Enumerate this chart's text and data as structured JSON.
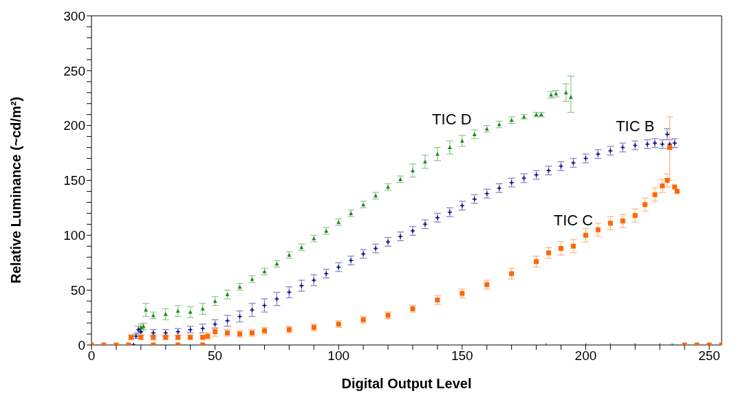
{
  "chart_data": {
    "type": "scatter",
    "xlabel": "Digital Output Level",
    "ylabel": "Relative Luminance (~cd/m²)",
    "xlim": [
      0,
      255
    ],
    "ylim": [
      0,
      300
    ],
    "xticks": [
      0,
      {
        "value": 10,
        "label": null
      },
      {
        "value": 20,
        "label": null
      },
      {
        "value": 30,
        "label": null
      },
      {
        "value": 40,
        "label": null
      },
      50,
      {
        "value": 60,
        "label": null
      },
      {
        "value": 70,
        "label": null
      },
      {
        "value": 80,
        "label": null
      },
      {
        "value": 90,
        "label": null
      },
      100,
      {
        "value": 110,
        "label": null
      },
      {
        "value": 120,
        "label": null
      },
      {
        "value": 130,
        "label": null
      },
      {
        "value": 140,
        "label": null
      },
      150,
      {
        "value": 160,
        "label": null
      },
      {
        "value": 170,
        "label": null
      },
      {
        "value": 180,
        "label": null
      },
      {
        "value": 190,
        "label": null
      },
      200,
      {
        "value": 210,
        "label": null
      },
      {
        "value": 220,
        "label": null
      },
      {
        "value": 230,
        "label": null
      },
      {
        "value": 240,
        "label": null
      },
      250
    ],
    "yticks": [
      0,
      {
        "value": 10,
        "label": null
      },
      {
        "value": 20,
        "label": null
      },
      {
        "value": 30,
        "label": null
      },
      {
        "value": 40,
        "label": null
      },
      50,
      {
        "value": 60,
        "label": null
      },
      {
        "value": 70,
        "label": null
      },
      {
        "value": 80,
        "label": null
      },
      {
        "value": 90,
        "label": null
      },
      100,
      {
        "value": 110,
        "label": null
      },
      {
        "value": 120,
        "label": null
      },
      {
        "value": 130,
        "label": null
      },
      {
        "value": 140,
        "label": null
      },
      150,
      {
        "value": 160,
        "label": null
      },
      {
        "value": 170,
        "label": null
      },
      {
        "value": 180,
        "label": null
      },
      {
        "value": 190,
        "label": null
      },
      200,
      {
        "value": 210,
        "label": null
      },
      {
        "value": 220,
        "label": null
      },
      {
        "value": 230,
        "label": null
      },
      {
        "value": 240,
        "label": null
      },
      250,
      {
        "value": 260,
        "label": null
      },
      {
        "value": 270,
        "label": null
      },
      {
        "value": 280,
        "label": null
      },
      {
        "value": 290,
        "label": null
      },
      300
    ],
    "grid": false,
    "legend": false,
    "series": [
      {
        "name": "TIC D",
        "color": "#1a8c1a",
        "marker": "triangle",
        "x": [
          20,
          21,
          22,
          25,
          30,
          35,
          40,
          45,
          50,
          55,
          60,
          65,
          70,
          75,
          80,
          85,
          90,
          95,
          100,
          105,
          110,
          115,
          120,
          125,
          130,
          135,
          140,
          145,
          150,
          155,
          160,
          165,
          170,
          175,
          180,
          182,
          186,
          188,
          192,
          194,
          184,
          200,
          210,
          220,
          230,
          235
        ],
        "values": [
          16,
          17,
          32,
          27,
          28,
          31,
          30,
          33,
          40,
          46,
          53,
          60,
          67,
          74,
          82,
          89,
          97,
          104,
          112,
          120,
          128,
          136,
          144,
          151,
          159,
          167,
          174,
          180,
          186,
          192,
          197,
          201,
          205,
          208,
          210,
          210,
          228,
          229,
          230,
          226,
          0,
          0,
          0,
          0,
          0,
          0
        ],
        "errors": [
          3,
          3,
          6,
          3,
          5,
          5,
          5,
          5,
          4,
          4,
          3,
          3,
          3,
          3,
          3,
          3,
          3,
          3,
          3,
          3,
          3,
          3,
          3,
          3,
          6,
          6,
          6,
          6,
          5,
          4,
          3,
          3,
          3,
          2,
          2,
          2,
          3,
          3,
          8,
          [
            212,
            245
          ],
          null,
          null,
          null,
          null,
          null,
          null
        ]
      },
      {
        "name": "TIC B",
        "color": "#000080",
        "marker": "cross",
        "x": [
          17,
          18,
          19,
          20,
          25,
          30,
          35,
          40,
          45,
          50,
          55,
          60,
          65,
          70,
          75,
          80,
          85,
          90,
          95,
          100,
          105,
          110,
          115,
          120,
          125,
          130,
          135,
          140,
          145,
          150,
          155,
          160,
          165,
          170,
          175,
          180,
          185,
          190,
          195,
          200,
          205,
          210,
          215,
          220,
          225,
          228,
          231,
          233,
          234,
          236
        ],
        "values": [
          0,
          8,
          14,
          12,
          11,
          11,
          12,
          14,
          15,
          19,
          22,
          26,
          32,
          36,
          42,
          48,
          54,
          59,
          65,
          71,
          77,
          83,
          88,
          94,
          99,
          104,
          110,
          116,
          121,
          127,
          133,
          138,
          143,
          148,
          152,
          155,
          159,
          163,
          166,
          170,
          174,
          177,
          180,
          182,
          183,
          184,
          183,
          192,
          183,
          184
        ],
        "errors": [
          null,
          2,
          3,
          3,
          3,
          3,
          3,
          3,
          4,
          4,
          5,
          5,
          6,
          6,
          6,
          5,
          5,
          5,
          4,
          4,
          4,
          4,
          4,
          4,
          4,
          4,
          4,
          4,
          4,
          4,
          4,
          4,
          4,
          4,
          4,
          4,
          4,
          4,
          4,
          4,
          4,
          4,
          4,
          4,
          4,
          4,
          4,
          5,
          4,
          4
        ]
      },
      {
        "name": "TIC C",
        "color": "#ff6600",
        "marker": "square",
        "x": [
          0,
          5,
          10,
          15,
          16,
          20,
          25,
          30,
          35,
          40,
          45,
          47,
          25,
          35,
          45,
          50,
          55,
          60,
          65,
          70,
          80,
          90,
          100,
          110,
          120,
          130,
          140,
          150,
          160,
          170,
          180,
          185,
          190,
          195,
          200,
          205,
          210,
          215,
          220,
          224,
          228,
          231,
          233,
          234,
          236,
          237,
          240,
          245,
          250,
          255
        ],
        "values": [
          0,
          0,
          0,
          0,
          7,
          7,
          7,
          7,
          7,
          7,
          7,
          8,
          0,
          0,
          0,
          12,
          11,
          10,
          11,
          13,
          14,
          16,
          19,
          23,
          27,
          33,
          41,
          47,
          55,
          65,
          76,
          84,
          88,
          90,
          100,
          105,
          111,
          113,
          118,
          128,
          137,
          145,
          150,
          180,
          144,
          140,
          0,
          0,
          0,
          0
        ],
        "errors": [
          null,
          null,
          null,
          null,
          2,
          2,
          2,
          2,
          2,
          2,
          2,
          3,
          null,
          null,
          null,
          4,
          3,
          3,
          3,
          3,
          3,
          3,
          3,
          3,
          3,
          3,
          4,
          4,
          4,
          5,
          5,
          5,
          6,
          6,
          6,
          6,
          6,
          6,
          6,
          6,
          6,
          6,
          6,
          [
            150,
            208
          ],
          null,
          null,
          null,
          null,
          null,
          null
        ]
      }
    ]
  }
}
